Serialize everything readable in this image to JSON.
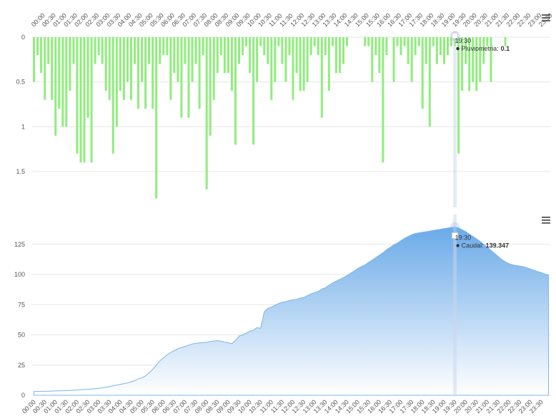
{
  "chart_data": [
    {
      "type": "bar",
      "y_reversed": true,
      "grid": true,
      "series": [
        {
          "name": "Pluviometria",
          "color": "#90ed7d",
          "values": [
            0.5,
            0.2,
            0.4,
            0.7,
            0.3,
            0.7,
            1.1,
            0.8,
            1.0,
            1.0,
            0.6,
            0.3,
            1.3,
            1.4,
            1.4,
            0.9,
            1.4,
            0.3,
            0.2,
            0.3,
            0.6,
            0.7,
            1.3,
            1.0,
            0.6,
            0.7,
            0.5,
            0.7,
            0.3,
            0.8,
            0.5,
            0.8,
            0.3,
            0.8,
            1.8,
            0.3,
            0.2,
            0.2,
            0.7,
            0.4,
            0.5,
            0.9,
            0.3,
            0.9,
            0.5,
            0.3,
            0.8,
            0.2,
            1.7,
            1.1,
            0.7,
            0.4,
            0.2,
            0.4,
            0.4,
            0.6,
            1.2,
            0.3,
            0.2,
            0.1,
            0.4,
            1.2,
            0.5,
            0.1,
            0.2,
            0.3,
            0.7,
            0.5,
            0.1,
            0.3,
            0.5,
            0.2,
            0.7,
            0.4,
            0.6,
            0.6,
            0.5,
            0.2,
            0.1,
            0.2,
            0.9,
            0.2,
            0.6,
            0.1,
            0.4,
            0.4,
            0.3,
            0.1,
            0,
            0,
            0,
            0,
            0.1,
            0.1,
            0.5,
            0.2,
            0.4,
            1.4,
            0.2,
            0,
            0.5,
            0.1,
            0.2,
            0.1,
            0.3,
            0.5,
            0.2,
            0.1,
            0.8,
            0.3,
            1.0,
            0.1,
            0.3,
            0.2,
            0.3,
            0.2,
            0.1,
            0.1,
            1.3,
            0.6,
            0.3,
            0.6,
            0.5,
            0.6,
            0.5,
            0.3,
            0.1,
            0.5,
            0,
            0,
            0,
            0.1,
            0,
            0,
            0,
            0,
            0,
            0,
            0,
            0,
            0,
            0,
            0,
            0
          ]
        }
      ],
      "categories": [
        "00:00",
        null,
        null,
        "00:30",
        null,
        null,
        "01:00",
        null,
        null,
        "01:30",
        null,
        null,
        "02:00",
        null,
        null,
        "02:30",
        null,
        null,
        "03:00",
        null,
        null,
        "03:30",
        null,
        null,
        "04:00",
        null,
        null,
        "04:30",
        null,
        null,
        "05:00",
        null,
        null,
        "05:30",
        null,
        null,
        "06:00",
        null,
        null,
        "06:30",
        null,
        null,
        "07:00",
        null,
        null,
        "07:30",
        null,
        null,
        "08:00",
        null,
        null,
        "08:30",
        null,
        null,
        "09:00",
        null,
        null,
        "09:30",
        null,
        null,
        "10:00",
        null,
        null,
        "10:30",
        null,
        null,
        "11:00",
        null,
        null,
        "11:30",
        null,
        null,
        "12:00",
        null,
        null,
        "12:30",
        null,
        null,
        "13:00",
        null,
        null,
        "13:30",
        null,
        null,
        "14:00",
        null,
        null,
        "14:30",
        null,
        null,
        "15:00",
        null,
        null,
        "15:30",
        null,
        null,
        "16:00",
        null,
        null,
        "16:30",
        null,
        null,
        "17:00",
        null,
        null,
        "17:30",
        null,
        null,
        "18:00",
        null,
        null,
        "18:30",
        null,
        null,
        "19:00",
        null,
        null,
        "19:30",
        null,
        null,
        "20:00",
        null,
        null,
        "20:30",
        null,
        null,
        "21:00",
        null,
        null,
        "21:30",
        null,
        null,
        "22:00",
        null,
        null,
        "22:30",
        null,
        null,
        "23:00",
        null,
        null,
        "23:30",
        null,
        null
      ],
      "ylim": [
        0,
        1.9
      ],
      "yticks": [
        0,
        0.5,
        1,
        1.5
      ],
      "tooltip": {
        "time": "19:30",
        "name": "Pluviometria:",
        "value": 0.1
      }
    },
    {
      "type": "area",
      "grid": true,
      "series": [
        {
          "name": "Caudal",
          "color": "#7cb5ec",
          "values": [
            3.2,
            3.2,
            3.3,
            3.3,
            3.4,
            3.5,
            3.6,
            3.7,
            3.8,
            3.9,
            4.0,
            4.2,
            4.4,
            4.6,
            4.8,
            5.0,
            5.2,
            5.5,
            5.8,
            6.2,
            6.7,
            7.2,
            7.8,
            8.4,
            9.0,
            9.6,
            10.2,
            11.0,
            12.2,
            13.5,
            14.5,
            16.0,
            18.5,
            21.5,
            25.0,
            28.5,
            31.0,
            33.5,
            35.5,
            37.0,
            38.5,
            39.5,
            40.5,
            41.5,
            42.5,
            43.0,
            43.3,
            43.6,
            44.0,
            44.5,
            45.0,
            45.2,
            44.8,
            44.0,
            43.5,
            42.8,
            45.5,
            49.0,
            50.0,
            51.5,
            53.0,
            54.0,
            56.0,
            55.5,
            69.0,
            72.0,
            73.0,
            74.5,
            76.0,
            77.0,
            77.5,
            78.5,
            79.0,
            79.5,
            80.5,
            81.0,
            82.5,
            84.0,
            85.0,
            86.0,
            88.0,
            89.0,
            91.0,
            93.0,
            94.5,
            96.0,
            97.5,
            99.0,
            101.0,
            103.0,
            105.0,
            106.5,
            108.0,
            110.0,
            112.0,
            114.0,
            116.0,
            118.0,
            120.5,
            122.5,
            124.5,
            126.0,
            128.0,
            130.0,
            131.5,
            133.0,
            134.0,
            134.5,
            135.0,
            135.5,
            136.0,
            136.5,
            137.0,
            137.5,
            138.0,
            138.5,
            139.0,
            139.347,
            138.5,
            137.0,
            135.5,
            133.5,
            131.5,
            129.5,
            127.5,
            125.0,
            122.5,
            120.0,
            117.5,
            115.0,
            112.5,
            110.5,
            109.0,
            108.0,
            107.5,
            107.0,
            106.5,
            105.5,
            104.5,
            103.5,
            102.5,
            101.5,
            100.5,
            99.5
          ]
        }
      ],
      "categories": [
        "00:00",
        null,
        null,
        "00:30",
        null,
        null,
        "01:00",
        null,
        null,
        "01:30",
        null,
        null,
        "02:00",
        null,
        null,
        "02:30",
        null,
        null,
        "03:00",
        null,
        null,
        "03:30",
        null,
        null,
        "04:00",
        null,
        null,
        "04:30",
        null,
        null,
        "05:00",
        null,
        null,
        "05:30",
        null,
        null,
        "06:00",
        null,
        null,
        "06:30",
        null,
        null,
        "07:00",
        null,
        null,
        "07:30",
        null,
        null,
        "08:00",
        null,
        null,
        "08:30",
        null,
        null,
        "09:00",
        null,
        null,
        "09:30",
        null,
        null,
        "10:00",
        null,
        null,
        "10:30",
        null,
        null,
        "11:00",
        null,
        null,
        "11:30",
        null,
        null,
        "12:00",
        null,
        null,
        "12:30",
        null,
        null,
        "13:00",
        null,
        null,
        "13:30",
        null,
        null,
        "14:00",
        null,
        null,
        "14:30",
        null,
        null,
        "15:00",
        null,
        null,
        "15:30",
        null,
        null,
        "16:00",
        null,
        null,
        "16:30",
        null,
        null,
        "17:00",
        null,
        null,
        "17:30",
        null,
        null,
        "18:00",
        null,
        null,
        "18:30",
        null,
        null,
        "19:00",
        null,
        null,
        "19:30",
        null,
        null,
        "20:00",
        null,
        null,
        "20:30",
        null,
        null,
        "21:00",
        null,
        null,
        "21:30",
        null,
        null,
        "22:00",
        null,
        null,
        "22:30",
        null,
        null,
        "23:00",
        null,
        null,
        "23:30",
        null,
        null
      ],
      "ylim": [
        0,
        145
      ],
      "yticks": [
        0,
        25,
        50,
        75,
        100,
        125
      ],
      "tooltip": {
        "time": "19:30",
        "name": "Caudal:",
        "value": 139.347
      }
    }
  ]
}
